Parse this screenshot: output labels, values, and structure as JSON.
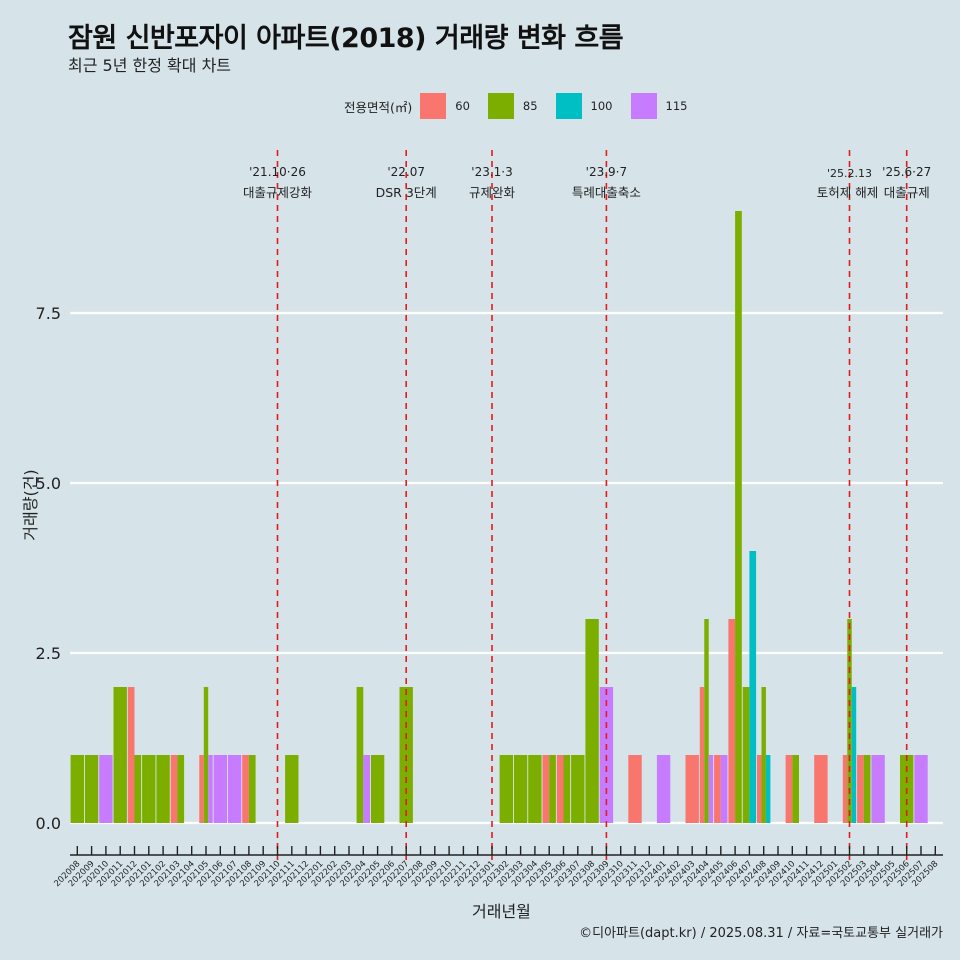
{
  "header": {
    "title": "잠원 신반포자이 아파트(2018) 거래량 변화 흐름",
    "subtitle": "최근 5년 한정 확대 차트"
  },
  "legend": {
    "title": "전용면적(㎡)",
    "items": [
      {
        "label": "60",
        "color": "#f8766d"
      },
      {
        "label": "85",
        "color": "#7cae00"
      },
      {
        "label": "100",
        "color": "#00bfc4"
      },
      {
        "label": "115",
        "color": "#c77cff"
      }
    ]
  },
  "caption": "©디아파트(dapt.kr) / 2025.08.31 / 자료=국토교통부 실거래가",
  "chart_data": {
    "type": "bar",
    "title": "잠원 신반포자이 아파트(2018) 거래량 변화 흐름",
    "subtitle": "최근 5년 한정 확대 차트",
    "xlabel": "거래년월",
    "ylabel": "거래량(건)",
    "ylim": [
      0,
      9
    ],
    "yticks": [
      "0.0",
      "2.5",
      "5.0",
      "7.5"
    ],
    "ytick_values": [
      0,
      2.5,
      5,
      7.5
    ],
    "grid": true,
    "legend_position": "top",
    "bar_mode": "dodge",
    "categories": [
      "202008",
      "202009",
      "202010",
      "202011",
      "202012",
      "202101",
      "202102",
      "202103",
      "202104",
      "202105",
      "202106",
      "202107",
      "202108",
      "202109",
      "202110",
      "202111",
      "202112",
      "202201",
      "202202",
      "202203",
      "202204",
      "202205",
      "202206",
      "202207",
      "202208",
      "202209",
      "202210",
      "202211",
      "202212",
      "202301",
      "202302",
      "202303",
      "202304",
      "202305",
      "202306",
      "202307",
      "202308",
      "202309",
      "202310",
      "202311",
      "202312",
      "202401",
      "202402",
      "202403",
      "202404",
      "202405",
      "202406",
      "202407",
      "202408",
      "202409",
      "202410",
      "202411",
      "202412",
      "202501",
      "202502",
      "202503",
      "202504",
      "202505",
      "202506",
      "202507",
      "202508"
    ],
    "series": [
      {
        "name": "60",
        "color": "#f8766d",
        "values": [
          0,
          0,
          0,
          0,
          2,
          0,
          0,
          1,
          0,
          1,
          0,
          0,
          1,
          0,
          0,
          0,
          0,
          0,
          0,
          0,
          0,
          0,
          0,
          0,
          0,
          0,
          0,
          0,
          0,
          0,
          0,
          0,
          0,
          1,
          1,
          0,
          0,
          0,
          0,
          1,
          0,
          0,
          0,
          1,
          2,
          1,
          3,
          0,
          1,
          0,
          1,
          0,
          1,
          0,
          1,
          1,
          0,
          0,
          0,
          0,
          0
        ]
      },
      {
        "name": "85",
        "color": "#7cae00",
        "values": [
          1,
          1,
          0,
          2,
          1,
          1,
          1,
          1,
          0,
          2,
          0,
          0,
          1,
          0,
          0,
          1,
          0,
          0,
          0,
          0,
          2,
          1,
          0,
          2,
          0,
          0,
          0,
          0,
          0,
          0,
          1,
          1,
          1,
          1,
          1,
          1,
          3,
          0,
          0,
          0,
          0,
          0,
          0,
          0,
          3,
          0,
          9,
          2,
          2,
          0,
          1,
          0,
          0,
          0,
          3,
          1,
          0,
          0,
          1,
          0,
          0
        ]
      },
      {
        "name": "100",
        "color": "#00bfc4",
        "values": [
          0,
          0,
          0,
          0,
          0,
          0,
          0,
          0,
          0,
          0,
          0,
          0,
          0,
          0,
          0,
          0,
          0,
          0,
          0,
          0,
          0,
          0,
          0,
          0,
          0,
          0,
          0,
          0,
          0,
          0,
          0,
          0,
          0,
          0,
          0,
          0,
          0,
          0,
          0,
          0,
          0,
          0,
          0,
          0,
          0,
          0,
          0,
          4,
          1,
          0,
          0,
          0,
          0,
          0,
          2,
          0,
          0,
          0,
          0,
          0,
          0
        ]
      },
      {
        "name": "115",
        "color": "#c77cff",
        "values": [
          0,
          0,
          1,
          0,
          0,
          0,
          0,
          0,
          0,
          1,
          1,
          1,
          0,
          0,
          0,
          0,
          0,
          0,
          0,
          0,
          1,
          0,
          0,
          0,
          0,
          0,
          0,
          0,
          0,
          0,
          0,
          0,
          0,
          0,
          0,
          0,
          0,
          2,
          0,
          0,
          0,
          1,
          0,
          0,
          1,
          1,
          0,
          0,
          0,
          0,
          0,
          0,
          0,
          0,
          0,
          0,
          1,
          0,
          0,
          1,
          0
        ]
      }
    ],
    "annotations": [
      {
        "month": "202110",
        "date": "'21.10·26",
        "label": "대출규제강화",
        "color": "#e41a1c"
      },
      {
        "month": "202207",
        "date": "'22.07",
        "label": "DSR 3단계",
        "color": "#e41a1c"
      },
      {
        "month": "202301",
        "date": "'23.1·3",
        "label": "규제완화",
        "color": "#e41a1c"
      },
      {
        "month": "202309",
        "date": "'23.9·7",
        "label": "특례대출축소",
        "color": "#e41a1c"
      },
      {
        "month": "202502",
        "date": "'25.2.13",
        "label": "토허제 해제",
        "color": "#e41a1c"
      },
      {
        "month": "202506",
        "date": "'25.6·27",
        "label": "대출규제",
        "color": "#e41a1c"
      }
    ]
  }
}
